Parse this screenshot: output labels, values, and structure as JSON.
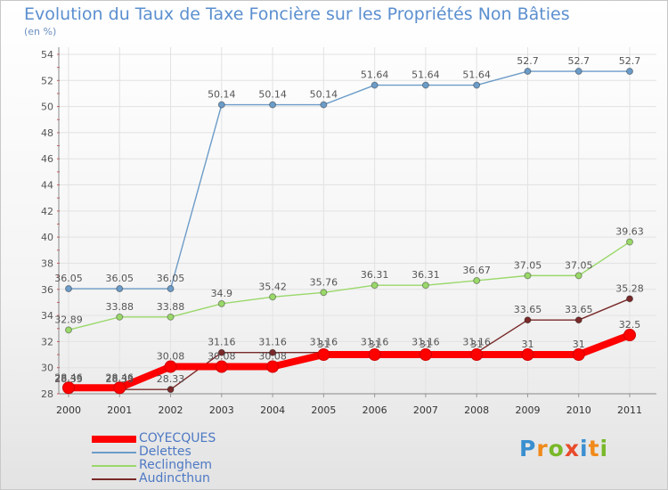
{
  "title": "Evolution du Taux de Taxe Foncière sur les Propriétés Non Bâties",
  "subtitle": "(en %)",
  "logo": "Proxiti",
  "colors": {
    "title": "#5b8fcf",
    "COYECQUES": "#ff0000",
    "Delettes": "#6c9cc8",
    "Reclinghem": "#9ad86a",
    "Audincthun": "#7a2a2a"
  },
  "chart_data": {
    "type": "line",
    "title": "Evolution du Taux de Taxe Foncière sur les Propriétés Non Bâties",
    "ylabel": "(en %)",
    "xlabel": "",
    "x": [
      "2000",
      "2001",
      "2002",
      "2003",
      "2004",
      "2005",
      "2006",
      "2007",
      "2008",
      "2009",
      "2010",
      "2011"
    ],
    "ylim": [
      28,
      54
    ],
    "yticks": [
      28,
      30,
      32,
      34,
      36,
      38,
      40,
      42,
      44,
      46,
      48,
      50,
      52,
      54
    ],
    "grid": true,
    "series": [
      {
        "name": "COYECQUES",
        "color": "#ff0000",
        "values": [
          28.46,
          28.46,
          30.08,
          30.08,
          30.08,
          31,
          31,
          31,
          31,
          31,
          31,
          32.5
        ],
        "labels": [
          "28.46",
          "28.46",
          "30.08",
          "30.08",
          "30.08",
          "31",
          "31",
          "31",
          "31",
          "31",
          "31",
          "32.5"
        ]
      },
      {
        "name": "Delettes",
        "color": "#6c9cc8",
        "values": [
          36.05,
          36.05,
          36.05,
          50.14,
          50.14,
          50.14,
          51.64,
          51.64,
          51.64,
          52.7,
          52.7,
          52.7
        ],
        "labels": [
          "36.05",
          "36.05",
          "36.05",
          "50.14",
          "50.14",
          "50.14",
          "51.64",
          "51.64",
          "51.64",
          "52.7",
          "52.7",
          "52.7"
        ]
      },
      {
        "name": "Reclinghem",
        "color": "#9ad86a",
        "values": [
          32.89,
          33.88,
          33.88,
          34.9,
          35.42,
          35.76,
          36.31,
          36.31,
          36.67,
          37.05,
          37.05,
          39.63
        ],
        "labels": [
          "32.89",
          "33.88",
          "33.88",
          "34.9",
          "35.42",
          "35.76",
          "36.31",
          "36.31",
          "36.67",
          "37.05",
          "37.05",
          "39.63"
        ]
      },
      {
        "name": "Audincthun",
        "color": "#7a2a2a",
        "values": [
          28.33,
          28.33,
          28.33,
          31.16,
          31.16,
          31.16,
          31.16,
          31.16,
          31.16,
          33.65,
          33.65,
          35.28
        ],
        "labels": [
          "28.33",
          "28.33",
          "28.33",
          "31.16",
          "31.16",
          "31.16",
          "31.16",
          "31.16",
          "31.16",
          "33.65",
          "33.65",
          "35.28"
        ]
      }
    ]
  }
}
